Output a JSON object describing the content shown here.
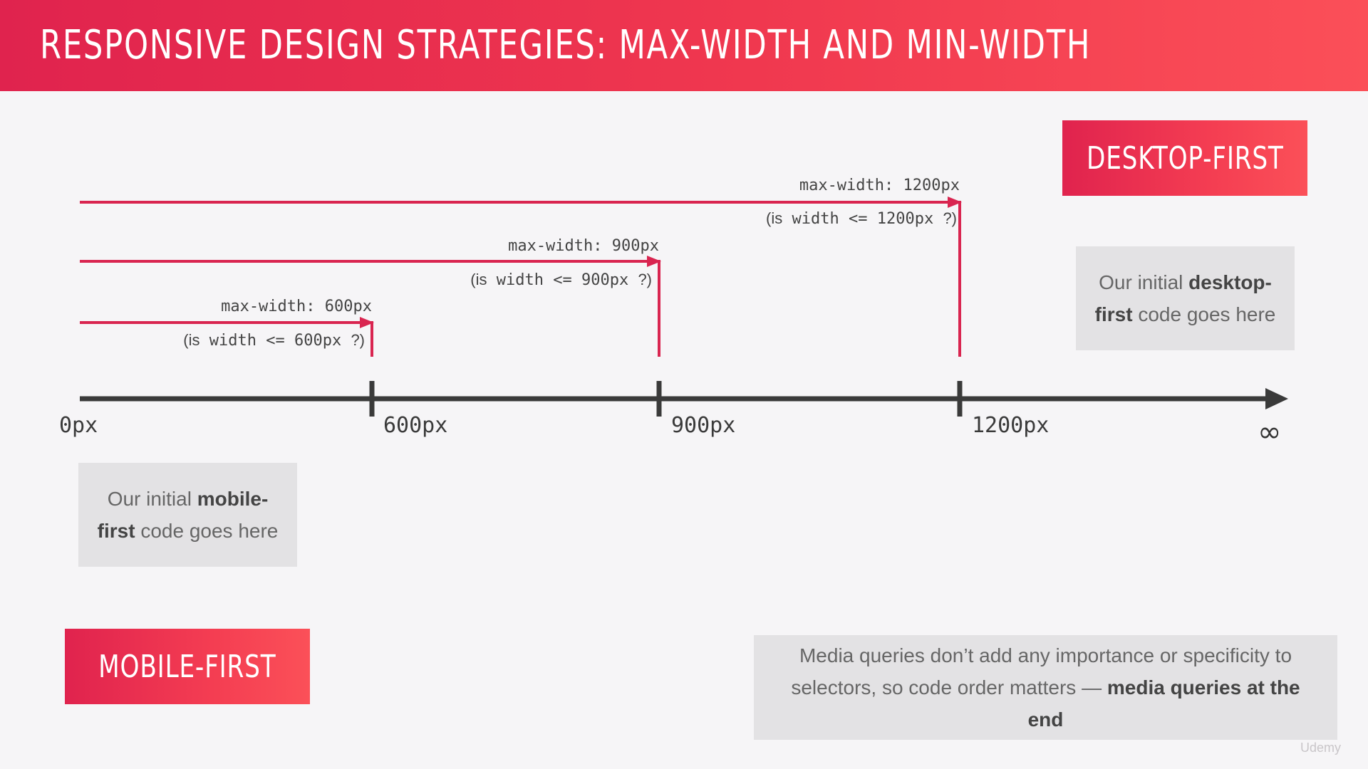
{
  "header": {
    "title": "RESPONSIVE DESIGN STRATEGIES: MAX-WIDTH AND MIN-WIDTH"
  },
  "tags": {
    "desktop_first": "DESKTOP-FIRST",
    "mobile_first": "MOBILE-FIRST"
  },
  "notes": {
    "desktop": {
      "pre": "Our initial ",
      "bold": "desktop-first",
      "post": " code goes here"
    },
    "mobile": {
      "pre": "Our initial ",
      "bold": "mobile-first",
      "post": " code goes here"
    },
    "bottom": {
      "pre": "Media queries don’t add any importance or specificity to selectors, so code order matters — ",
      "bold": "media queries at the end"
    }
  },
  "queries": [
    {
      "label": "max-width: 1200px",
      "cond_pre": "(is",
      "cond_mid": " width  <=  1200px ",
      "cond_post": "?)"
    },
    {
      "label": "max-width: 900px",
      "cond_pre": "(is",
      "cond_mid": " width  <=  900px ",
      "cond_post": "?)"
    },
    {
      "label": "max-width: 600px",
      "cond_pre": "(is",
      "cond_mid": " width  <=  600px ",
      "cond_post": "?)"
    }
  ],
  "axis": {
    "labels": [
      "0px",
      "600px",
      "900px",
      "1200px"
    ],
    "infinity": "∞"
  },
  "watermark": "Udemy",
  "colors": {
    "accent": "#d92550",
    "axis": "#3a3a3a",
    "note_bg": "#e3e2e4",
    "background": "#f6f5f7"
  }
}
